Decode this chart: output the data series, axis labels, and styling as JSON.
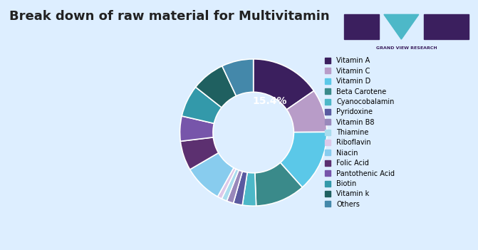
{
  "title": "Break down of raw material for Multivitamin",
  "title_fontsize": 13,
  "background_color": "#ddeeff",
  "labels": [
    "Vitamin A",
    "Vitamin C",
    "Vitamin D",
    "Beta Carotene",
    "Cyanocobalamin",
    "Pyridoxine",
    "Vitamin B8",
    "Thiamine",
    "Riboflavin",
    "Niacin",
    "Folic Acid",
    "Pantothenic Acid",
    "Biotin",
    "Vitamin k",
    "Others"
  ],
  "values": [
    15.4,
    9.5,
    13.5,
    11.0,
    3.0,
    2.0,
    1.5,
    1.2,
    1.0,
    8.5,
    6.5,
    5.5,
    7.0,
    7.4,
    7.0
  ],
  "colors": [
    "#3b1f5e",
    "#b89cc8",
    "#5bc8e8",
    "#3a8a8a",
    "#4db8c8",
    "#5a5aa0",
    "#9988bb",
    "#aaddee",
    "#ddc8e8",
    "#88ccee",
    "#5c3070",
    "#7755aa",
    "#3399aa",
    "#1f6060",
    "#4488aa"
  ],
  "annotation_text": "15.4%",
  "annotation_color": "#ffffff",
  "donut_width": 0.45
}
